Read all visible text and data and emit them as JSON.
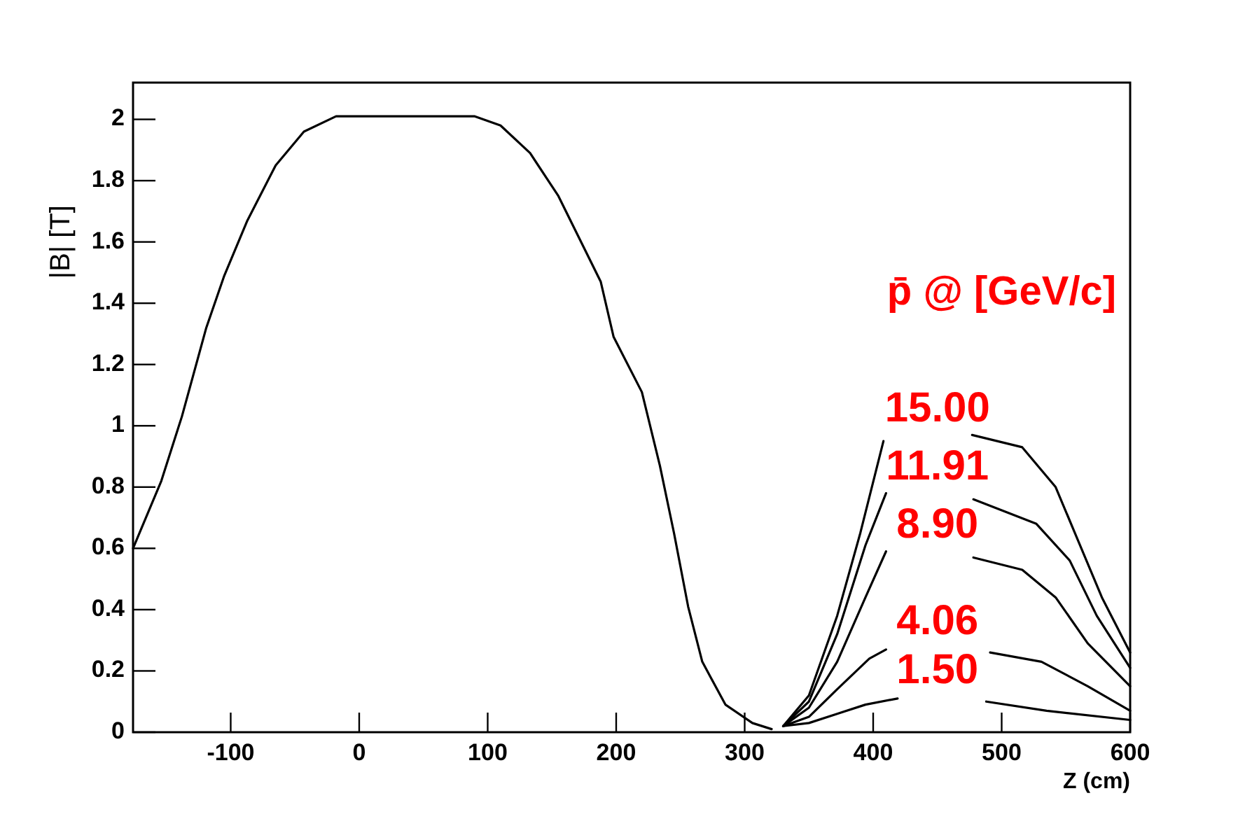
{
  "chart_data": {
    "type": "line",
    "xlabel": "Z (cm)",
    "ylabel": "|B| [T]",
    "xlim": [
      -176,
      600
    ],
    "ylim": [
      0,
      2.12
    ],
    "xticks": [
      -100,
      0,
      100,
      200,
      300,
      400,
      500,
      600
    ],
    "yticks": [
      0,
      0.2,
      0.4,
      0.6,
      0.8,
      1,
      1.2,
      1.4,
      1.6,
      1.8,
      2
    ],
    "grid": false,
    "marker": "none",
    "line_style": "solid",
    "annotations": [
      "p̄ @ [GeV/c]"
    ],
    "series": [
      {
        "color": "#000000",
        "x": [
          -176,
          -154,
          -138,
          -119,
          -105,
          -87,
          -65,
          -43,
          -18,
          0,
          50,
          90,
          110,
          133,
          155,
          188,
          198,
          220,
          234,
          245,
          256,
          267,
          285,
          306,
          321
        ],
        "values": [
          0.6,
          0.82,
          1.03,
          1.32,
          1.49,
          1.67,
          1.85,
          1.96,
          2.01,
          2.01,
          2.01,
          2.01,
          1.98,
          1.89,
          1.75,
          1.47,
          1.29,
          1.11,
          0.87,
          0.65,
          0.41,
          0.23,
          0.09,
          0.03,
          0.01
        ]
      },
      {
        "name": "15.00",
        "color": "#000000",
        "x": [
          330,
          350,
          372,
          390,
          408,
          450,
          477,
          516,
          542,
          560,
          578,
          600
        ],
        "values": [
          0.02,
          0.12,
          0.38,
          0.65,
          0.95,
          null,
          0.97,
          0.93,
          0.8,
          0.62,
          0.44,
          0.26
        ]
      },
      {
        "name": "11.91",
        "color": "#000000",
        "x": [
          330,
          350,
          372,
          394,
          410,
          450,
          478,
          527,
          553,
          574,
          600
        ],
        "values": [
          0.02,
          0.1,
          0.32,
          0.61,
          0.78,
          null,
          0.76,
          0.68,
          0.56,
          0.38,
          0.21
        ]
      },
      {
        "name": "8.90",
        "color": "#000000",
        "x": [
          330,
          350,
          372,
          394,
          410,
          450,
          478,
          516,
          542,
          567,
          600
        ],
        "values": [
          0.02,
          0.08,
          0.23,
          0.44,
          0.59,
          null,
          0.57,
          0.53,
          0.44,
          0.29,
          0.15
        ]
      },
      {
        "name": "4.06",
        "color": "#000000",
        "x": [
          330,
          350,
          372,
          397,
          410,
          450,
          491,
          531,
          567,
          600
        ],
        "values": [
          0.02,
          0.05,
          0.14,
          0.24,
          0.27,
          null,
          0.26,
          0.23,
          0.15,
          0.07
        ]
      },
      {
        "name": "1.50",
        "color": "#000000",
        "x": [
          330,
          350,
          372,
          394,
          419,
          450,
          488,
          535,
          600
        ],
        "values": [
          0.02,
          0.03,
          0.06,
          0.09,
          0.11,
          null,
          0.1,
          0.07,
          0.04
        ]
      }
    ]
  }
}
